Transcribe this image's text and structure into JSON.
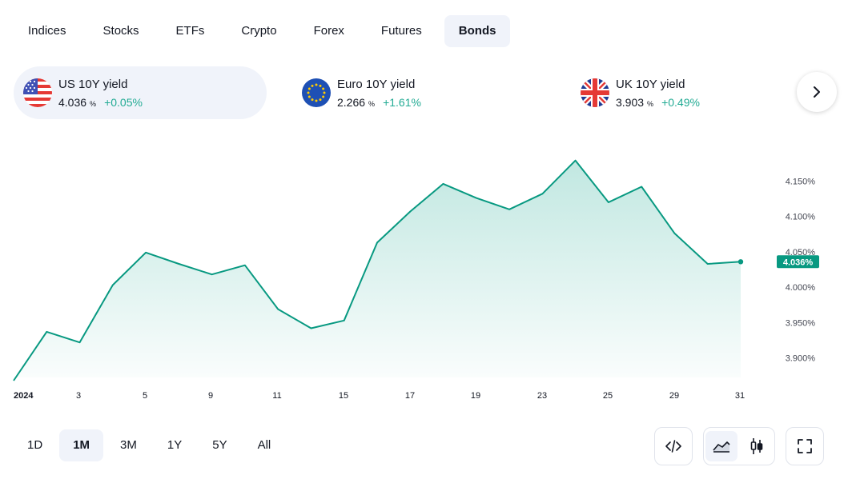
{
  "tabs": [
    {
      "label": "Indices",
      "active": false
    },
    {
      "label": "Stocks",
      "active": false
    },
    {
      "label": "ETFs",
      "active": false
    },
    {
      "label": "Crypto",
      "active": false
    },
    {
      "label": "Forex",
      "active": false
    },
    {
      "label": "Futures",
      "active": false
    },
    {
      "label": "Bonds",
      "active": true
    }
  ],
  "tickers": [
    {
      "name": "US 10Y yield",
      "value": "4.036",
      "unit": "%",
      "change": "+0.05%",
      "flag": "us-flag-icon",
      "active": true
    },
    {
      "name": "Euro 10Y yield",
      "value": "2.266",
      "unit": "%",
      "change": "+1.61%",
      "flag": "eu-flag-icon",
      "active": false
    },
    {
      "name": "UK 10Y yield",
      "value": "3.903",
      "unit": "%",
      "change": "+0.49%",
      "flag": "uk-flag-icon",
      "active": false
    }
  ],
  "next_icon": "chevron-right-icon",
  "colors": {
    "accent": "#22ab94",
    "line": "#089981",
    "text": "#131722",
    "muted": "#434651",
    "active_bg": "#f0f3fa"
  },
  "chart_data": {
    "type": "area",
    "x_labels": [
      "2024",
      "3",
      "5",
      "9",
      "11",
      "15",
      "17",
      "19",
      "23",
      "25",
      "29",
      "31"
    ],
    "y_ticks": [
      "4.150%",
      "4.100%",
      "4.050%",
      "4.000%",
      "3.950%",
      "3.900%"
    ],
    "ylim": [
      3.868,
      4.19
    ],
    "current_label": "4.036%",
    "values": [
      3.868,
      3.937,
      3.922,
      4.003,
      4.049,
      4.033,
      4.018,
      4.031,
      3.969,
      3.942,
      3.953,
      4.063,
      4.107,
      4.146,
      4.126,
      4.11,
      4.132,
      4.179,
      4.12,
      4.142,
      4.076,
      4.033,
      4.036
    ],
    "grid": false
  },
  "ranges": [
    {
      "label": "1D",
      "active": false
    },
    {
      "label": "1M",
      "active": true
    },
    {
      "label": "3M",
      "active": false
    },
    {
      "label": "1Y",
      "active": false
    },
    {
      "label": "5Y",
      "active": false
    },
    {
      "label": "All",
      "active": false
    }
  ],
  "tools": {
    "embed_icon": "embed-code-icon",
    "area_icon": "area-chart-icon",
    "candle_icon": "candlestick-icon",
    "fullscreen_icon": "fullscreen-icon"
  }
}
